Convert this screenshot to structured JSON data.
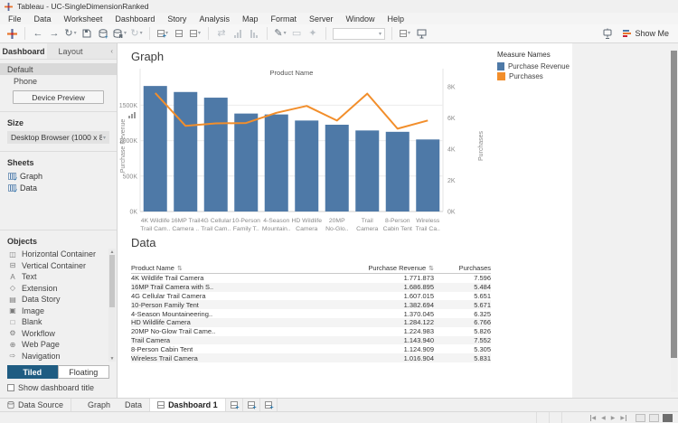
{
  "window": {
    "title": "Tableau - UC-SingleDimensionRanked"
  },
  "menu": {
    "items": [
      "File",
      "Data",
      "Worksheet",
      "Dashboard",
      "Story",
      "Analysis",
      "Map",
      "Format",
      "Server",
      "Window",
      "Help"
    ]
  },
  "glyphs": {
    "back": "←",
    "forward": "→",
    "replay": "↻",
    "run_update": "↻",
    "swap": "⇄",
    "highlight": "✎",
    "format_a": "▭",
    "format_b": "✦",
    "caret": "▾",
    "collapse": "‹",
    "dropdown": "▾",
    "nav_prev": "◀",
    "nav_next": "▶"
  },
  "toolbar": {
    "show_me": "Show Me"
  },
  "sidebar": {
    "tabs": [
      {
        "label": "Dashboard",
        "active": true
      },
      {
        "label": "Layout",
        "active": false
      }
    ],
    "devices": {
      "items": [
        "Default",
        "Phone"
      ],
      "selected": "Default"
    },
    "device_preview_label": "Device Preview",
    "size_heading": "Size",
    "size_value": "Desktop Browser (1000 x 8...",
    "sheets_heading": "Sheets",
    "sheets": [
      "Graph",
      "Data"
    ],
    "objects_heading": "Objects",
    "objects": [
      {
        "label": "Horizontal Container",
        "glyph": "◫"
      },
      {
        "label": "Vertical Container",
        "glyph": "⊟"
      },
      {
        "label": "Text",
        "glyph": "A"
      },
      {
        "label": "Extension",
        "glyph": "◇"
      },
      {
        "label": "Data Story",
        "glyph": "▤"
      },
      {
        "label": "Image",
        "glyph": "▣"
      },
      {
        "label": "Blank",
        "glyph": "□"
      },
      {
        "label": "Workflow",
        "glyph": "⚙"
      },
      {
        "label": "Web Page",
        "glyph": "⊕"
      },
      {
        "label": "Navigation",
        "glyph": "⇨"
      }
    ],
    "mode": {
      "tiled": "Tiled",
      "floating": "Floating",
      "active": "Tiled"
    },
    "show_title": {
      "label": "Show dashboard title",
      "checked": false
    }
  },
  "dashboard": {
    "graph_title": "Graph",
    "data_title": "Data",
    "legend": {
      "title": "Measure Names",
      "items": [
        {
          "label": "Purchase Revenue",
          "color": "#4e79a7"
        },
        {
          "label": "Purchases",
          "color": "#f28e2b"
        }
      ]
    }
  },
  "chart_data": {
    "type": "bar",
    "title": "Product Name",
    "categories": [
      "4K Wildlife Trail Camera",
      "16MP Trail Camera with S..",
      "4G Cellular Trail Camera",
      "10-Person Family Tent",
      "4-Season Mountaineering..",
      "HD Wildlife Camera",
      "20MP No-Glow Trail Came..",
      "Trail Camera",
      "8-Person Cabin Tent",
      "Wireless Trail Camera"
    ],
    "x_tick_labels": [
      [
        "4K Wildlife",
        "Trail Cam.."
      ],
      [
        "16MP Trail",
        "Camera .."
      ],
      [
        "4G Cellular",
        "Trail Cam.."
      ],
      [
        "10-Person",
        "Family T.."
      ],
      [
        "4-Season",
        "Mountain.."
      ],
      [
        "HD Wildlife",
        "Camera"
      ],
      [
        "20MP",
        "No-Glo.."
      ],
      [
        "Trail",
        "Camera"
      ],
      [
        "8-Person",
        "Cabin Tent"
      ],
      [
        "Wireless",
        "Trail Ca.."
      ]
    ],
    "series": [
      {
        "name": "Purchase Revenue",
        "type": "bar",
        "axis": "left",
        "color": "#4e79a7",
        "values": [
          1771873,
          1686895,
          1607015,
          1382694,
          1370045,
          1284122,
          1224983,
          1143940,
          1124909,
          1016904
        ]
      },
      {
        "name": "Purchases",
        "type": "line",
        "axis": "right",
        "color": "#f28e2b",
        "values": [
          7596,
          5484,
          5651,
          5671,
          6325,
          6766,
          5826,
          7552,
          5305,
          5831
        ]
      }
    ],
    "left_axis": {
      "label": "Purchase Revenue",
      "ticks": [
        "0K",
        "500K",
        "1000K",
        "1500K"
      ],
      "tick_values": [
        0,
        500000,
        1000000,
        1500000
      ],
      "max": 1850000
    },
    "right_axis": {
      "label": "Purchases",
      "ticks": [
        "0K",
        "2K",
        "4K",
        "6K",
        "8K"
      ],
      "tick_values": [
        0,
        2000,
        4000,
        6000,
        8000
      ],
      "max": 8400
    },
    "grid": true,
    "legend_position": "right"
  },
  "table": {
    "columns": [
      {
        "label": "Product Name",
        "sortable": true
      },
      {
        "label": "Purchase Revenue",
        "sortable": true
      },
      {
        "label": "Purchases",
        "sortable": false
      }
    ],
    "rows": [
      [
        "4K Wildlife Trail Camera",
        "1.771.873",
        "7.596"
      ],
      [
        "16MP Trail Camera with S..",
        "1.686.895",
        "5.484"
      ],
      [
        "4G Cellular Trail Camera",
        "1.607.015",
        "5.651"
      ],
      [
        "10-Person Family Tent",
        "1.382.694",
        "5.671"
      ],
      [
        "4-Season Mountaineering..",
        "1.370.045",
        "6.325"
      ],
      [
        "HD Wildlife Camera",
        "1.284.122",
        "6.766"
      ],
      [
        "20MP No-Glow Trail Came..",
        "1.224.983",
        "5.826"
      ],
      [
        "Trail Camera",
        "1.143.940",
        "7.552"
      ],
      [
        "8-Person Cabin Tent",
        "1.124.909",
        "5.305"
      ],
      [
        "Wireless Trail Camera",
        "1.016.904",
        "5.831"
      ]
    ]
  },
  "sheet_tabs": {
    "data_source": "Data Source",
    "tabs": [
      {
        "label": "Graph",
        "active": false
      },
      {
        "label": "Data",
        "active": false
      },
      {
        "label": "Dashboard 1",
        "active": true
      }
    ]
  }
}
